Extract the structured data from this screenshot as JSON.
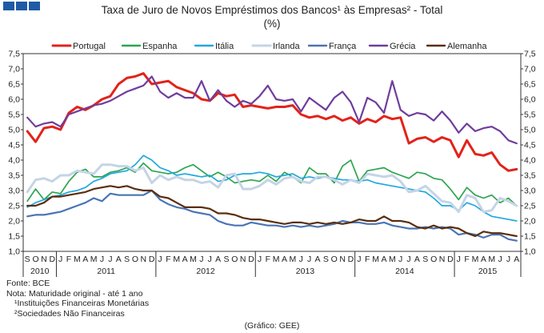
{
  "header": {
    "title": "Taxa de Juro de Novos Empréstimos dos Bancos¹ às Empresas² - Total",
    "unit": "(%)",
    "logo_color": "#1f5aa6"
  },
  "notes": {
    "source": "Fonte: BCE",
    "note": "Nota: Maturidade original - até 1 ano",
    "fn1": "¹Instituições Financeiras Monetárias",
    "fn2": "²Sociedades Não Financeiras"
  },
  "credit": "(Gráfico: GEE)",
  "chart_data": {
    "type": "line",
    "ylim": [
      1.0,
      7.5
    ],
    "yticks": [
      "1,0",
      "1,5",
      "2,0",
      "2,5",
      "3,0",
      "3,5",
      "4,0",
      "4,5",
      "5,0",
      "5,5",
      "6,0",
      "6,5",
      "7,0",
      "7,5"
    ],
    "months": [
      "S",
      "O",
      "N",
      "D",
      "J",
      "F",
      "M",
      "A",
      "M",
      "J",
      "J",
      "A",
      "S",
      "O",
      "N",
      "D",
      "J",
      "F",
      "M",
      "A",
      "M",
      "J",
      "J",
      "A",
      "S",
      "O",
      "N",
      "D",
      "J",
      "F",
      "M",
      "A",
      "M",
      "J",
      "J",
      "A",
      "S",
      "O",
      "N",
      "D",
      "J",
      "F",
      "M",
      "A",
      "M",
      "J",
      "J",
      "A",
      "S",
      "O",
      "N",
      "D",
      "J",
      "F",
      "M",
      "A",
      "M",
      "J",
      "J",
      "A"
    ],
    "years": [
      {
        "label": "2010",
        "start": 0,
        "count": 4
      },
      {
        "label": "2011",
        "start": 4,
        "count": 12
      },
      {
        "label": "2012",
        "start": 16,
        "count": 12
      },
      {
        "label": "2013",
        "start": 28,
        "count": 12
      },
      {
        "label": "2014",
        "start": 40,
        "count": 12
      },
      {
        "label": "2015",
        "start": 52,
        "count": 8
      }
    ],
    "series": [
      {
        "name": "Portugal",
        "color": "#e2231a",
        "width": 3,
        "values": [
          4.95,
          4.6,
          5.05,
          5.1,
          5.0,
          5.55,
          5.75,
          5.65,
          5.8,
          6.0,
          6.1,
          6.5,
          6.7,
          6.75,
          6.85,
          6.5,
          6.55,
          6.6,
          6.4,
          6.3,
          6.2,
          6.0,
          5.95,
          6.2,
          6.1,
          6.15,
          5.75,
          5.8,
          5.75,
          5.7,
          5.75,
          5.75,
          5.8,
          5.5,
          5.4,
          5.45,
          5.35,
          5.45,
          5.3,
          5.4,
          5.2,
          5.35,
          5.25,
          5.45,
          5.35,
          5.4,
          4.55,
          4.7,
          4.75,
          4.6,
          4.75,
          4.65,
          4.1,
          4.65,
          4.2,
          4.15,
          4.25,
          3.85,
          3.65,
          3.7
        ]
      },
      {
        "name": "Espanha",
        "color": "#2da44e",
        "width": 1.7,
        "values": [
          2.65,
          3.05,
          2.7,
          2.95,
          2.9,
          3.3,
          3.6,
          3.7,
          3.45,
          3.45,
          3.6,
          3.65,
          3.75,
          3.6,
          3.9,
          3.65,
          3.6,
          3.55,
          3.6,
          3.75,
          3.85,
          3.65,
          3.45,
          3.6,
          3.45,
          3.25,
          3.3,
          3.35,
          3.3,
          3.5,
          3.3,
          3.6,
          3.45,
          3.25,
          3.75,
          3.55,
          3.55,
          3.25,
          3.8,
          4.0,
          3.3,
          3.65,
          3.7,
          3.75,
          3.6,
          3.5,
          3.4,
          3.6,
          3.55,
          3.4,
          3.35,
          3.05,
          2.7,
          3.1,
          2.85,
          2.75,
          2.85,
          2.6,
          2.75,
          2.5
        ]
      },
      {
        "name": "Itália",
        "color": "#21a7df",
        "width": 1.7,
        "values": [
          2.45,
          2.6,
          2.7,
          2.8,
          2.85,
          2.95,
          3.0,
          3.1,
          3.3,
          3.4,
          3.55,
          3.6,
          3.65,
          3.85,
          4.15,
          4.0,
          3.75,
          3.65,
          3.5,
          3.55,
          3.5,
          3.45,
          3.5,
          3.3,
          3.35,
          3.5,
          3.55,
          3.55,
          3.6,
          3.55,
          3.45,
          3.5,
          3.55,
          3.4,
          3.45,
          3.4,
          3.45,
          3.4,
          3.35,
          3.35,
          3.3,
          3.35,
          3.25,
          3.2,
          3.15,
          3.1,
          3.05,
          3.0,
          2.95,
          2.75,
          2.5,
          2.5,
          2.35,
          2.6,
          2.5,
          2.3,
          2.15,
          2.1,
          2.05,
          2.0
        ]
      },
      {
        "name": "Irlanda",
        "color": "#c5d4e6",
        "width": 3,
        "values": [
          2.95,
          3.35,
          3.4,
          3.3,
          3.5,
          3.5,
          3.65,
          3.6,
          3.55,
          3.85,
          3.85,
          3.8,
          3.8,
          3.65,
          3.75,
          3.25,
          3.5,
          3.35,
          3.45,
          3.35,
          3.35,
          3.25,
          3.3,
          3.1,
          3.5,
          3.55,
          3.05,
          3.05,
          3.15,
          3.35,
          3.2,
          3.4,
          3.45,
          3.3,
          3.25,
          3.45,
          3.45,
          3.35,
          3.2,
          3.35,
          3.25,
          3.55,
          3.5,
          3.45,
          3.5,
          3.3,
          2.95,
          3.0,
          3.15,
          2.9,
          2.65,
          2.6,
          2.3,
          2.85,
          2.75,
          2.3,
          2.35,
          2.75,
          2.65,
          2.5
        ]
      },
      {
        "name": "França",
        "color": "#4a74b4",
        "width": 2.2,
        "values": [
          2.15,
          2.2,
          2.2,
          2.25,
          2.3,
          2.4,
          2.5,
          2.6,
          2.75,
          2.65,
          2.9,
          2.85,
          2.85,
          2.85,
          2.85,
          3.0,
          2.7,
          2.55,
          2.45,
          2.4,
          2.3,
          2.25,
          2.2,
          2.0,
          1.9,
          1.85,
          1.85,
          1.95,
          1.9,
          1.85,
          1.85,
          1.8,
          1.85,
          1.8,
          1.85,
          1.8,
          1.85,
          1.9,
          2.0,
          1.95,
          1.95,
          1.9,
          1.9,
          1.95,
          1.85,
          1.8,
          1.75,
          1.75,
          1.8,
          1.75,
          1.8,
          1.75,
          1.55,
          1.6,
          1.55,
          1.45,
          1.55,
          1.55,
          1.4,
          1.35
        ]
      },
      {
        "name": "Grécia",
        "color": "#6f3d9c",
        "width": 2.2,
        "values": [
          5.4,
          5.1,
          5.2,
          5.25,
          5.1,
          5.5,
          5.6,
          5.7,
          5.8,
          5.85,
          5.95,
          6.1,
          6.25,
          6.35,
          6.45,
          6.75,
          6.25,
          6.05,
          6.2,
          6.05,
          6.05,
          6.6,
          5.95,
          6.3,
          5.95,
          5.75,
          5.95,
          5.85,
          6.1,
          6.45,
          6.0,
          5.95,
          6.0,
          5.6,
          6.05,
          5.85,
          5.65,
          6.05,
          6.25,
          5.9,
          5.25,
          6.05,
          5.9,
          5.55,
          6.6,
          5.65,
          5.45,
          5.55,
          5.5,
          5.3,
          5.6,
          5.3,
          4.9,
          5.2,
          4.95,
          5.05,
          5.1,
          4.95,
          4.65,
          4.55
        ]
      },
      {
        "name": "Alemanha",
        "color": "#5a2e0e",
        "width": 2.2,
        "values": [
          2.5,
          2.5,
          2.6,
          2.8,
          2.8,
          2.85,
          2.9,
          2.95,
          3.05,
          3.1,
          3.15,
          3.1,
          3.15,
          3.05,
          3.0,
          3.0,
          2.8,
          2.75,
          2.6,
          2.45,
          2.45,
          2.45,
          2.4,
          2.25,
          2.25,
          2.2,
          2.1,
          2.05,
          2.05,
          2.0,
          1.95,
          1.9,
          1.95,
          1.95,
          1.9,
          1.95,
          1.9,
          1.95,
          1.9,
          1.95,
          2.05,
          2.0,
          2.0,
          2.15,
          2.0,
          2.0,
          1.95,
          1.8,
          1.75,
          1.85,
          1.75,
          1.8,
          1.75,
          1.6,
          1.5,
          1.65,
          1.6,
          1.6,
          1.55,
          1.5
        ]
      }
    ]
  }
}
